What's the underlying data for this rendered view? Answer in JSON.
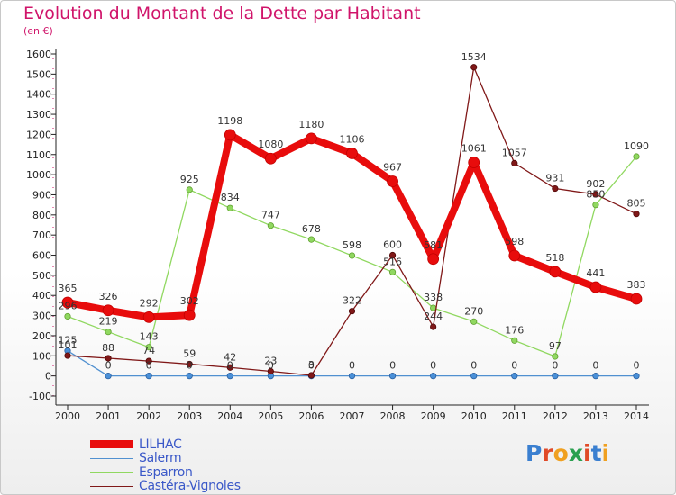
{
  "title": "Evolution du Montant de la Dette par Habitant",
  "subtitle": "(en €)",
  "logo": {
    "text": "Proxiti",
    "letter_colors": [
      "#3a7fd0",
      "#e04a28",
      "#f0a020",
      "#2aa050",
      "#e04a28",
      "#3a7fd0",
      "#f0a020"
    ]
  },
  "chart_data": {
    "type": "line",
    "title": "Evolution du Montant de la Dette par Habitant",
    "ylabel": "(en €)",
    "xlabel": "",
    "x": [
      "2000",
      "2001",
      "2002",
      "2003",
      "2004",
      "2005",
      "2006",
      "2007",
      "2008",
      "2009",
      "2010",
      "2011",
      "2012",
      "2013",
      "2014"
    ],
    "ylim": [
      -100,
      1600
    ],
    "y_ticks": [
      -100,
      0,
      100,
      200,
      300,
      400,
      500,
      600,
      700,
      800,
      900,
      1000,
      1100,
      1200,
      1300,
      1400,
      1500,
      1600
    ],
    "grid": false,
    "legend_position": "bottom-left",
    "series": [
      {
        "name": "LILHAC",
        "color": "#e80c0c",
        "values": [
          365,
          326,
          292,
          302,
          1198,
          1080,
          1180,
          1106,
          967,
          581,
          1061,
          598,
          518,
          441,
          383
        ],
        "labels": [
          "365",
          "326",
          "292",
          "302",
          "1198",
          "1080",
          "1180",
          "1106",
          "967",
          "581",
          "1061",
          "598",
          "518",
          "441",
          "383"
        ]
      },
      {
        "name": "Salerm",
        "color": "#5090d0",
        "values": [
          125,
          0,
          0,
          0,
          0,
          0,
          0,
          0,
          0,
          0,
          0,
          0,
          0,
          0,
          0
        ],
        "labels": [
          "125",
          "0",
          "0",
          "0",
          "0",
          "0",
          "0",
          "0",
          "0",
          "0",
          "0",
          "0",
          "0",
          "0",
          "0"
        ]
      },
      {
        "name": "Esparron",
        "color": "#90d860",
        "values": [
          296,
          219,
          143,
          925,
          834,
          747,
          678,
          598,
          516,
          338,
          270,
          176,
          97,
          850,
          1090
        ],
        "labels": [
          "296",
          "219",
          "143",
          "925",
          "834",
          "747",
          "678",
          "598",
          "516",
          "338",
          "270",
          "176",
          "97",
          "850",
          "1090"
        ]
      },
      {
        "name": "Castéra-Vignoles",
        "color": "#801818",
        "values": [
          101,
          88,
          74,
          59,
          42,
          23,
          3,
          322,
          600,
          244,
          1534,
          1057,
          931,
          902,
          805
        ],
        "labels": [
          "101",
          "88",
          "74",
          "59",
          "42",
          "23",
          "3",
          "322",
          "600",
          "244",
          "1534",
          "1057",
          "931",
          "902",
          "805"
        ]
      }
    ]
  }
}
